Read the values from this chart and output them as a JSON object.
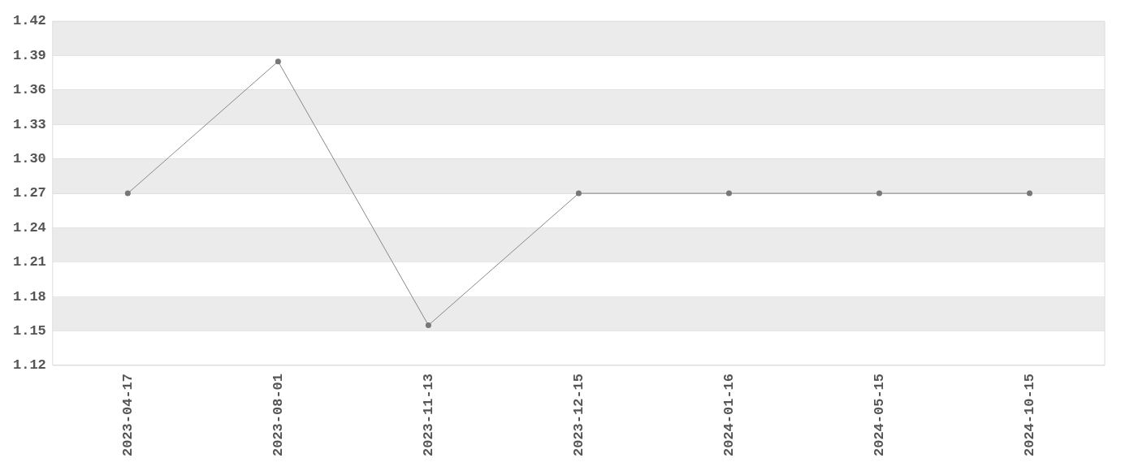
{
  "chart_data": {
    "type": "line",
    "categories": [
      "2023-04-17",
      "2023-08-01",
      "2023-11-13",
      "2023-12-15",
      "2024-01-16",
      "2024-05-15",
      "2024-10-15"
    ],
    "values": [
      1.27,
      1.385,
      1.155,
      1.27,
      1.27,
      1.27,
      1.27
    ],
    "color": "#888888",
    "marker": "circle",
    "grid": "y",
    "ylim": [
      1.12,
      1.42
    ],
    "yticks": [
      1.12,
      1.15,
      1.18,
      1.21,
      1.24,
      1.27,
      {
        "value": 1.3,
        "label": "1.30"
      },
      1.33,
      1.36,
      1.39,
      1.42
    ]
  }
}
